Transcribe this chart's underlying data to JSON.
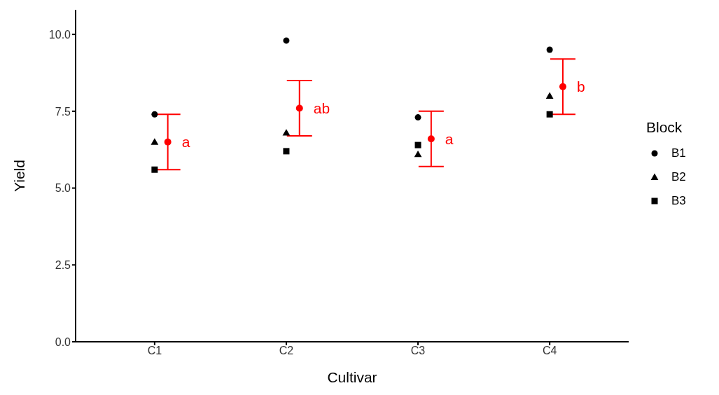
{
  "chart_data": {
    "type": "scatter",
    "xlabel": "Cultivar",
    "ylabel": "Yield",
    "categories": [
      "C1",
      "C2",
      "C3",
      "C4"
    ],
    "ylim": [
      0,
      10.8
    ],
    "yticks": [
      {
        "value": 0,
        "label": "0.0"
      },
      2.5,
      {
        "value": 5,
        "label": "5.0"
      },
      7.5,
      {
        "value": 10,
        "label": "10.0"
      }
    ],
    "grid": false,
    "legend": "right",
    "legend_title": "Block",
    "series": [
      {
        "name": "B1",
        "color": "#000000",
        "marker": "circle",
        "values": [
          7.4,
          9.8,
          7.3,
          9.5
        ]
      },
      {
        "name": "B2",
        "color": "#000000",
        "marker": "triangle",
        "values": [
          6.5,
          6.8,
          6.1,
          8.0
        ]
      },
      {
        "name": "B3",
        "color": "#000000",
        "marker": "square",
        "values": [
          5.6,
          6.2,
          6.4,
          7.4
        ]
      },
      {
        "color": "#ff0000",
        "marker": "circle",
        "values": [
          6.5,
          7.6,
          6.6,
          8.3
        ],
        "errors": [
          [
            5.6,
            7.4
          ],
          [
            6.7,
            8.5
          ],
          [
            5.7,
            7.5
          ],
          [
            7.4,
            9.2
          ]
        ]
      }
    ],
    "annotations": [
      "a",
      "ab",
      "a",
      "b"
    ]
  }
}
